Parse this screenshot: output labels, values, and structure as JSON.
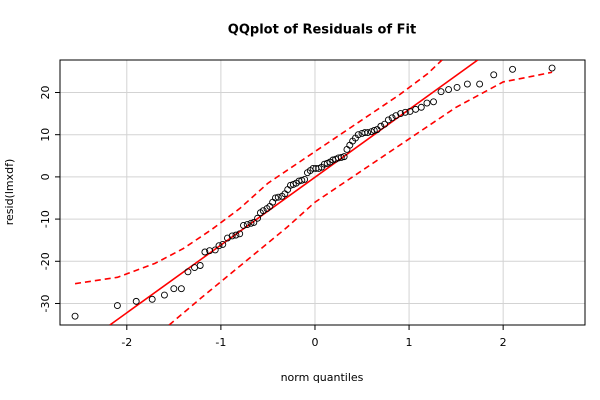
{
  "chart_data": {
    "type": "scatter",
    "title": "QQplot of Residuals of Fit",
    "xlabel": "norm quantiles",
    "ylabel": "resid(lmxdf)",
    "xlim": [
      -2.71,
      2.87
    ],
    "ylim": [
      -35.1,
      27.7
    ],
    "xticks": [
      -2,
      -1,
      0,
      1,
      2
    ],
    "yticks": [
      -30,
      -20,
      -10,
      0,
      10,
      20
    ],
    "grid": true,
    "point_color": "#000000",
    "x": [
      -2.55,
      -2.1,
      -1.9,
      -1.73,
      -1.6,
      -1.5,
      -1.42,
      -1.35,
      -1.28,
      -1.22,
      -1.17,
      -1.12,
      -1.06,
      -1.02,
      -0.98,
      -0.93,
      -0.88,
      -0.84,
      -0.8,
      -0.76,
      -0.72,
      -0.68,
      -0.65,
      -0.61,
      -0.58,
      -0.55,
      -0.51,
      -0.48,
      -0.45,
      -0.42,
      -0.39,
      -0.35,
      -0.32,
      -0.29,
      -0.26,
      -0.23,
      -0.2,
      -0.17,
      -0.14,
      -0.11,
      -0.08,
      -0.05,
      -0.02,
      0.01,
      0.04,
      0.07,
      0.1,
      0.13,
      0.16,
      0.19,
      0.22,
      0.25,
      0.28,
      0.31,
      0.34,
      0.37,
      0.4,
      0.43,
      0.46,
      0.5,
      0.53,
      0.56,
      0.6,
      0.63,
      0.66,
      0.7,
      0.74,
      0.78,
      0.82,
      0.86,
      0.91,
      0.96,
      1.01,
      1.07,
      1.13,
      1.19,
      1.26,
      1.34,
      1.42,
      1.51,
      1.62,
      1.75,
      1.9,
      2.1,
      2.52
    ],
    "values": [
      -33,
      -30.5,
      -29.5,
      -29,
      -28,
      -26.5,
      -26.5,
      -22.5,
      -21.5,
      -21,
      -17.8,
      -17.5,
      -17.3,
      -16.3,
      -16,
      -14.5,
      -14,
      -13.8,
      -13.5,
      -11.5,
      -11.3,
      -11,
      -10.8,
      -9.8,
      -8.5,
      -8,
      -7.5,
      -7,
      -6,
      -5,
      -4.8,
      -4.6,
      -4,
      -3,
      -2,
      -1.8,
      -1.5,
      -1,
      -0.8,
      -0.6,
      1,
      1.5,
      2,
      2,
      2,
      2.3,
      3,
      3.2,
      3.5,
      4,
      4.2,
      4.5,
      4.6,
      4.8,
      6.5,
      7.5,
      8.5,
      9.2,
      10,
      10.3,
      10.5,
      10.5,
      10.7,
      11,
      11.2,
      12,
      12.5,
      13.5,
      14,
      14.5,
      15,
      15.3,
      15.5,
      16,
      16.5,
      17.5,
      17.8,
      20.2,
      20.7,
      21.2,
      22,
      22,
      24.2,
      25.5,
      25.8
    ],
    "lines": [
      {
        "color": "#ff0000",
        "style": "solid",
        "x": [
          -2.18,
          1.73
        ],
        "values": [
          -35.1,
          27.7
        ]
      },
      {
        "color": "#ff0000",
        "style": "dashed",
        "x": [
          -2.55,
          -2.1,
          -1.7,
          -1.4,
          -1.1,
          -0.8,
          -0.5,
          -0.2,
          0,
          0.3,
          0.6,
          0.9,
          1.2,
          1.35
        ],
        "values": [
          -25.3,
          -23.8,
          -20.5,
          -17,
          -12.5,
          -7.5,
          -1.5,
          3,
          6,
          10.5,
          15,
          19.5,
          24.5,
          27.7
        ]
      },
      {
        "color": "#ff0000",
        "style": "dashed",
        "x": [
          -1.55,
          -1.2,
          -0.9,
          -0.6,
          -0.3,
          0,
          0.5,
          1,
          1.5,
          2,
          2.3,
          2.52
        ],
        "values": [
          -35.1,
          -28.5,
          -23,
          -17.5,
          -12,
          -6,
          1.5,
          9,
          16.5,
          22.5,
          23.8,
          24.8
        ]
      }
    ]
  }
}
